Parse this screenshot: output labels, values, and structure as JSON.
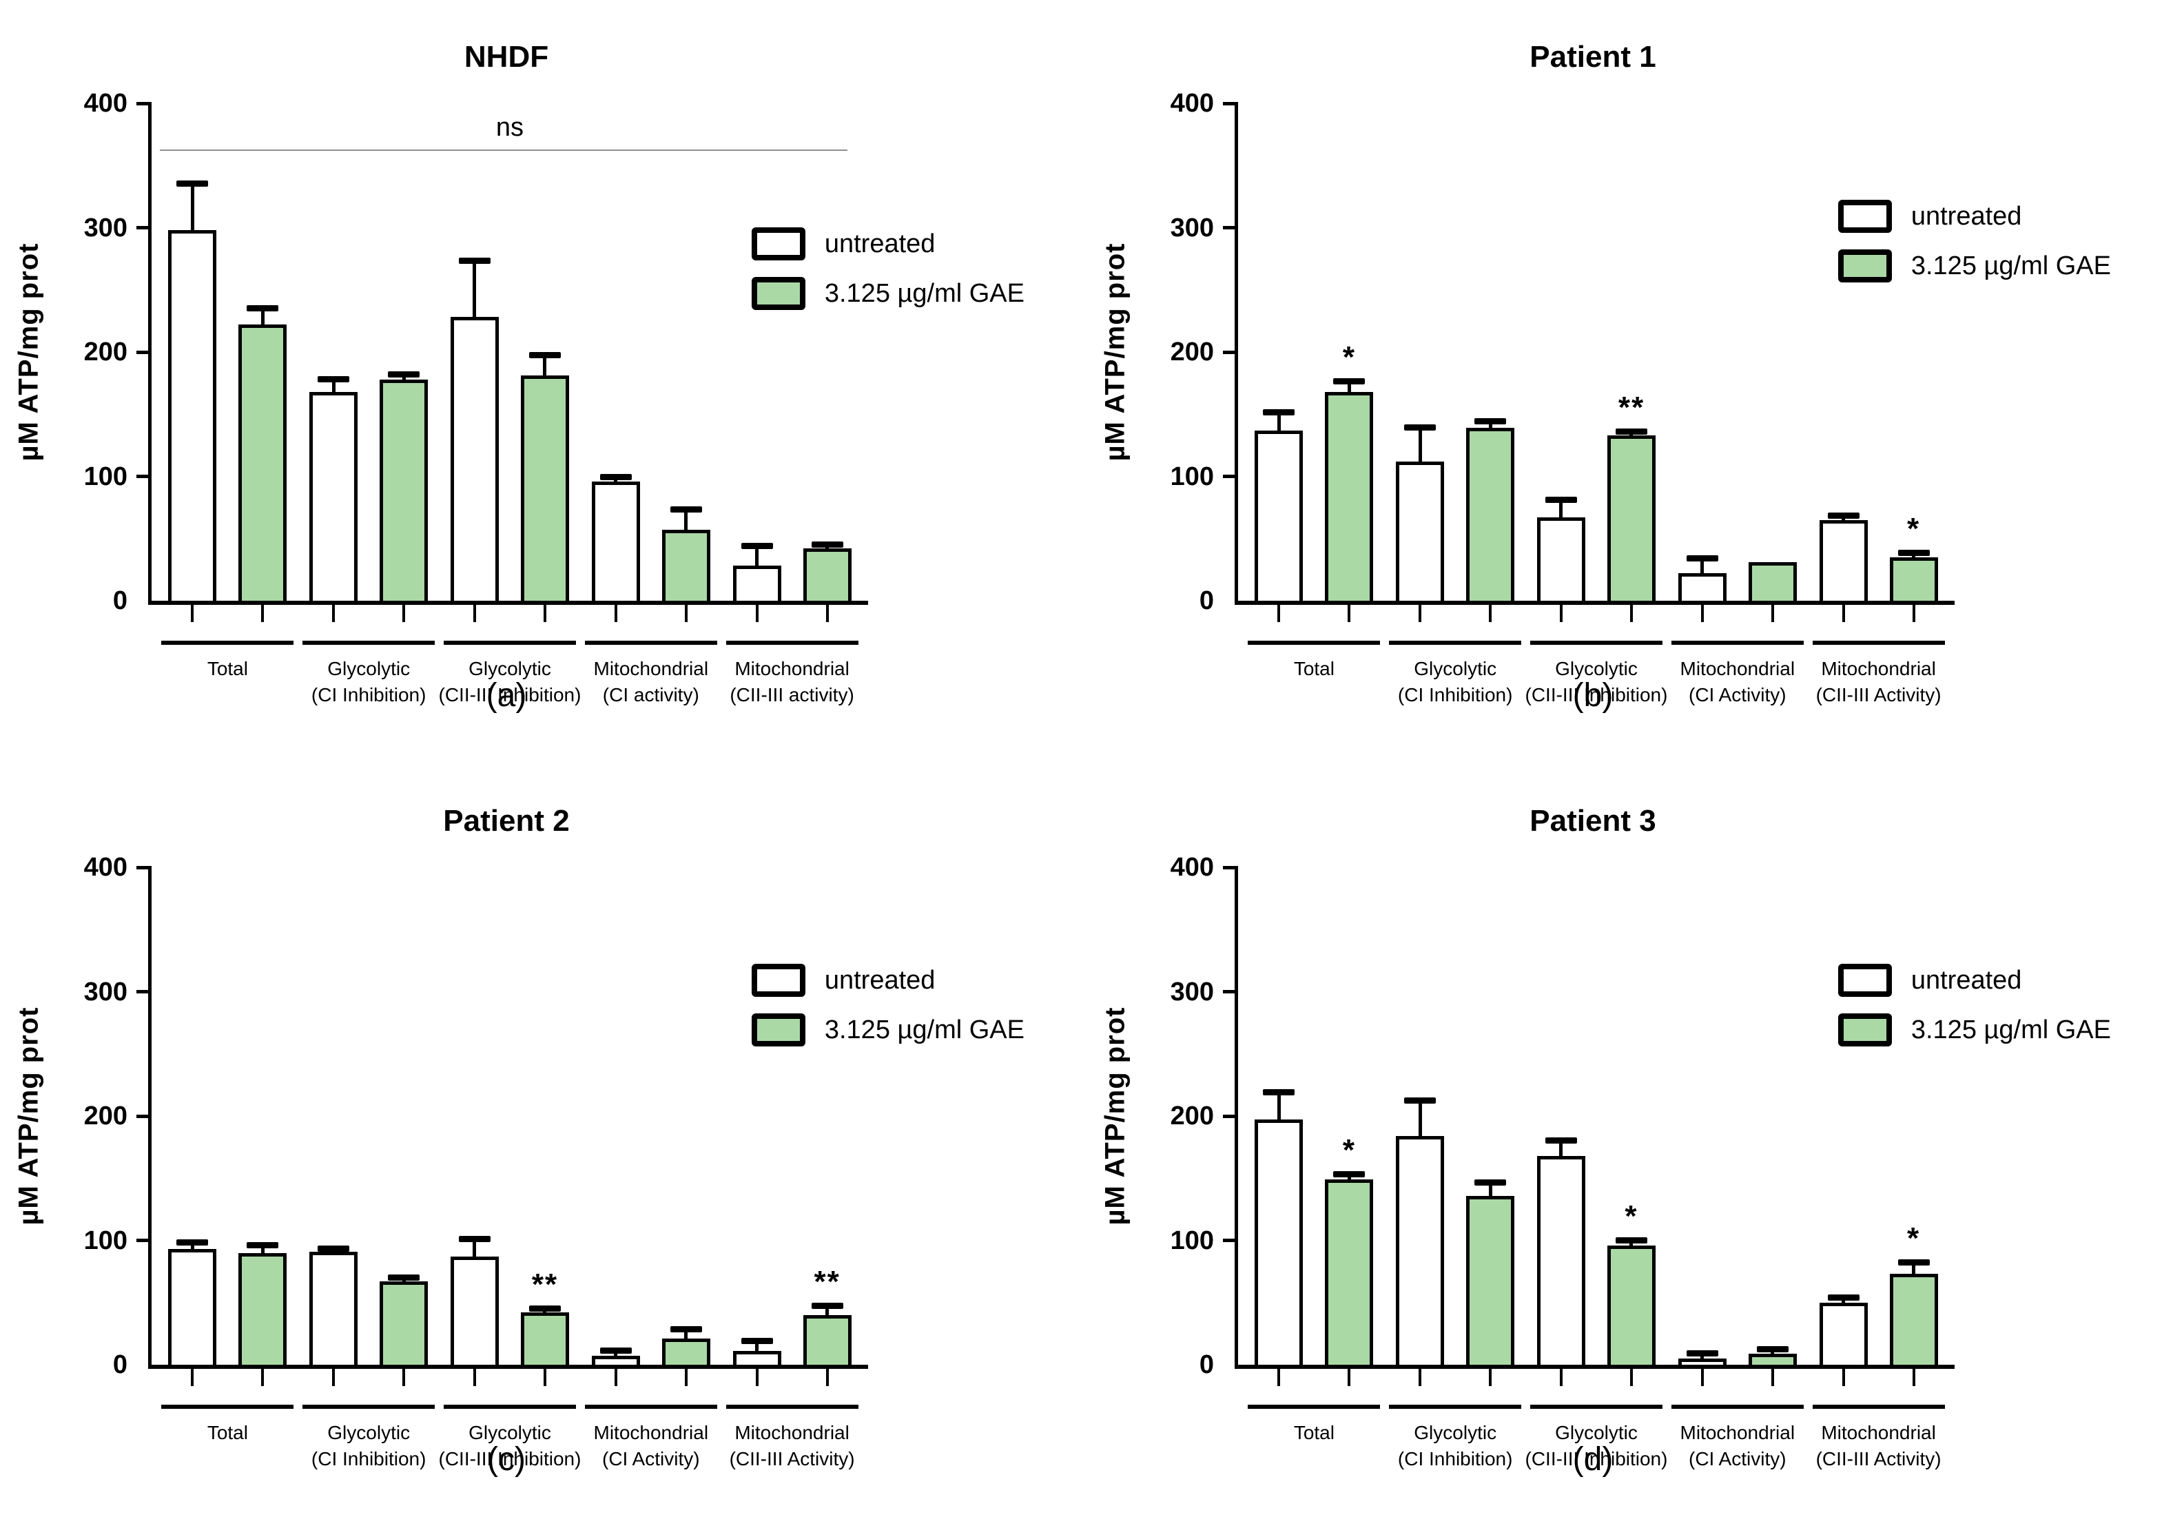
{
  "figure": {
    "colors": {
      "untreated": "#ffffff",
      "treated": "#aad9a5",
      "bar_border": "#000000",
      "ns_line": "#8f8f8f"
    },
    "legend": {
      "untreated_label": "untreated",
      "treated_label": "3.125 µg/ml GAE"
    }
  },
  "chart_data": [
    {
      "type": "bar",
      "panel": "a",
      "title": "NHDF",
      "caption": "(a)",
      "ylabel": "µM ATP/mg prot",
      "ylim": [
        0,
        400
      ],
      "yticks": [
        0,
        100,
        200,
        300,
        400
      ],
      "legend": [
        "untreated",
        "3.125 µg/ml GAE"
      ],
      "legend_position": "top-right",
      "grid": false,
      "annotation": {
        "text": "ns",
        "type": "span-line",
        "y": 362
      },
      "categories": [
        [
          "Total",
          ""
        ],
        [
          "Glycolytic",
          "(CI Inhibition)"
        ],
        [
          "Glycolytic",
          "(CII-III Inhibition)"
        ],
        [
          "Mitochondrial",
          "(CI activity)"
        ],
        [
          "Mitochondrial",
          "(CII-III activity)"
        ]
      ],
      "series": [
        {
          "name": "untreated",
          "values": [
            298,
            168,
            228,
            96,
            28
          ],
          "errors": [
            37,
            10,
            45,
            3,
            16
          ],
          "sig": [
            "",
            "",
            "",
            "",
            ""
          ]
        },
        {
          "name": "3.125 µg/ml GAE",
          "values": [
            222,
            178,
            181,
            57,
            42
          ],
          "errors": [
            13,
            4,
            16,
            16,
            3
          ],
          "sig": [
            "",
            "",
            "",
            "",
            ""
          ]
        }
      ]
    },
    {
      "type": "bar",
      "panel": "b",
      "title": "Patient 1",
      "caption": "(b)",
      "ylabel": "µM ATP/mg prot",
      "ylim": [
        0,
        400
      ],
      "yticks": [
        0,
        100,
        200,
        300,
        400
      ],
      "legend": [
        "untreated",
        "3.125 µg/ml GAE"
      ],
      "legend_position": "top-right",
      "grid": false,
      "annotation": null,
      "categories": [
        [
          "Total",
          ""
        ],
        [
          "Glycolytic",
          "(CI Inhibition)"
        ],
        [
          "Glycolytic",
          "(CII-III Inhibition)"
        ],
        [
          "Mitochondrial",
          "(CI Activity)"
        ],
        [
          "Mitochondrial",
          "(CII-III Activity)"
        ]
      ],
      "series": [
        {
          "name": "untreated",
          "values": [
            137,
            112,
            67,
            22,
            65
          ],
          "errors": [
            14,
            27,
            14,
            12,
            3
          ],
          "sig": [
            "",
            "",
            "",
            "",
            ""
          ]
        },
        {
          "name": "3.125 µg/ml GAE",
          "values": [
            168,
            139,
            133,
            31,
            35
          ],
          "errors": [
            8,
            5,
            3,
            0,
            3
          ],
          "sig": [
            "*",
            "",
            "**",
            "",
            "*"
          ]
        }
      ]
    },
    {
      "type": "bar",
      "panel": "c",
      "title": "Patient 2",
      "caption": "(c)",
      "ylabel": "µM ATP/mg prot",
      "ylim": [
        0,
        400
      ],
      "yticks": [
        0,
        100,
        200,
        300,
        400
      ],
      "legend": [
        "untreated",
        "3.125 µg/ml GAE"
      ],
      "legend_position": "top-right",
      "grid": false,
      "annotation": null,
      "categories": [
        [
          "Total",
          ""
        ],
        [
          "Glycolytic",
          "(CI Inhibition)"
        ],
        [
          "Glycolytic",
          "(CII-III Inhibition)"
        ],
        [
          "Mitochondrial",
          "(CI Activity)"
        ],
        [
          "Mitochondrial",
          "(CII-III Activity)"
        ]
      ],
      "series": [
        {
          "name": "untreated",
          "values": [
            93,
            91,
            87,
            7,
            11
          ],
          "errors": [
            5,
            2,
            14,
            4,
            8
          ],
          "sig": [
            "",
            "",
            "",
            "",
            ""
          ]
        },
        {
          "name": "3.125 µg/ml GAE",
          "values": [
            90,
            67,
            42,
            21,
            40
          ],
          "errors": [
            6,
            3,
            3,
            7,
            7
          ],
          "sig": [
            "",
            "",
            "**",
            "",
            "**"
          ]
        }
      ]
    },
    {
      "type": "bar",
      "panel": "d",
      "title": "Patient 3",
      "caption": "(d)",
      "ylabel": "µM ATP/mg prot",
      "ylim": [
        0,
        400
      ],
      "yticks": [
        0,
        100,
        200,
        300,
        400
      ],
      "legend": [
        "untreated",
        "3.125 µg/ml GAE"
      ],
      "legend_position": "top-right",
      "grid": false,
      "annotation": null,
      "categories": [
        [
          "Total",
          ""
        ],
        [
          "Glycolytic",
          "(CI Inhibition)"
        ],
        [
          "Glycolytic",
          "(CII-III Inhibition)"
        ],
        [
          "Mitochondrial",
          "(CI Activity)"
        ],
        [
          "Mitochondrial",
          "(CII-III Activity)"
        ]
      ],
      "series": [
        {
          "name": "untreated",
          "values": [
            197,
            184,
            168,
            5,
            50
          ],
          "errors": [
            22,
            28,
            12,
            4,
            4
          ],
          "sig": [
            "",
            "",
            "",
            "",
            ""
          ]
        },
        {
          "name": "3.125 µg/ml GAE",
          "values": [
            149,
            136,
            96,
            9,
            73
          ],
          "errors": [
            4,
            10,
            4,
            3,
            9
          ],
          "sig": [
            "*",
            "",
            "*",
            "",
            "*"
          ]
        }
      ]
    }
  ]
}
